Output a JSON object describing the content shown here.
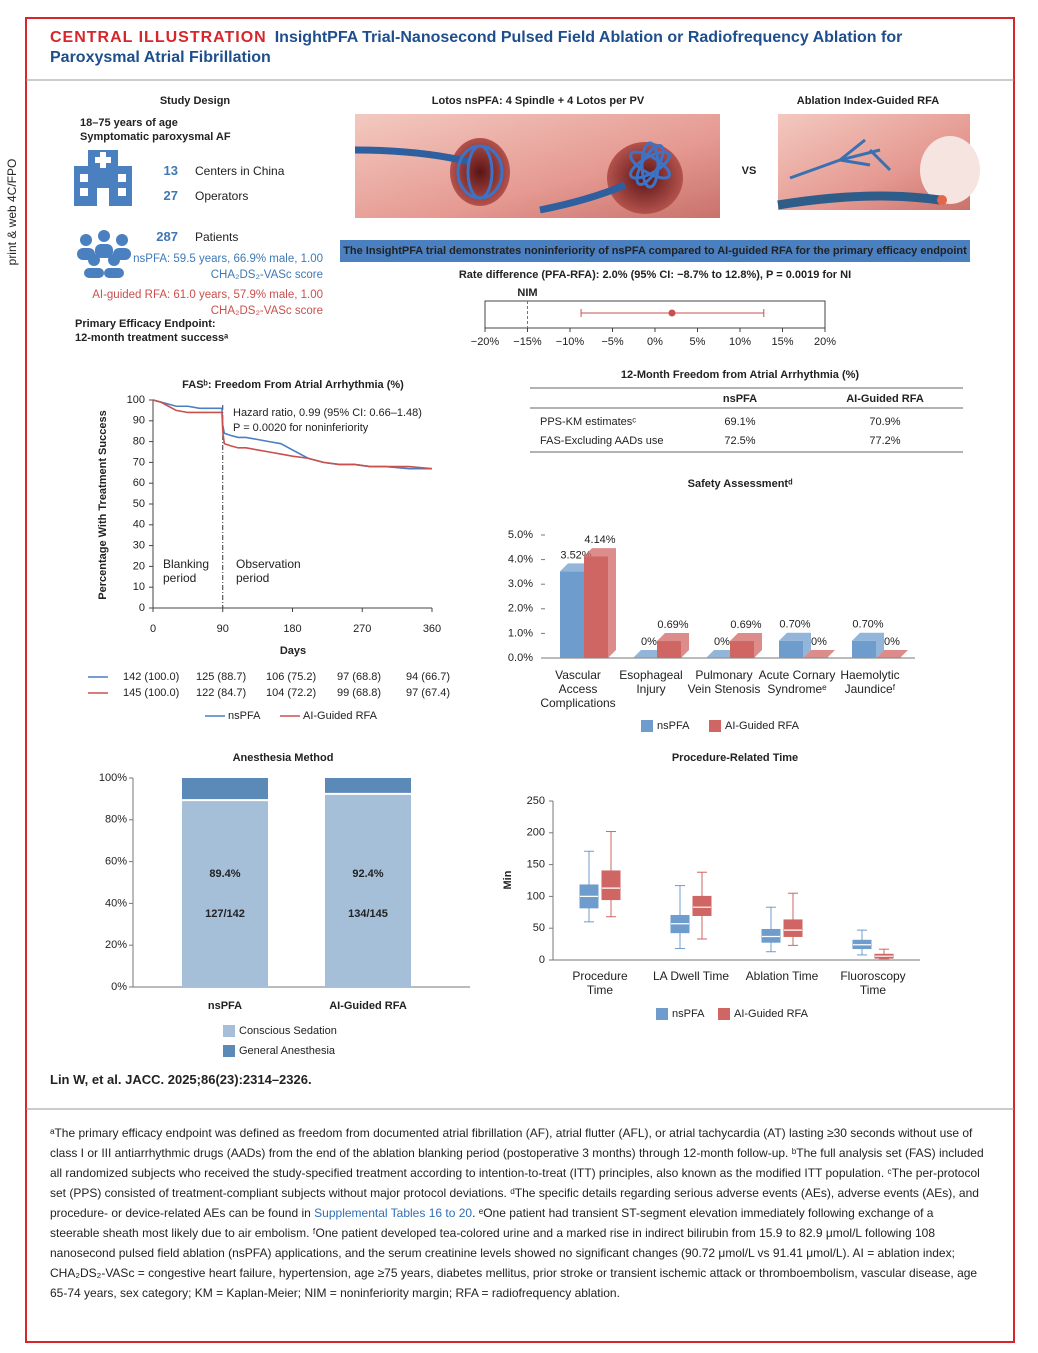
{
  "header": {
    "label": "CENTRAL ILLUSTRATION",
    "title": "InsightPFA Trial-Nanosecond Pulsed Field Ablation or Radiofrequency Ablation for Paroxysmal Atrial Fibrillation"
  },
  "side_label": "print & web 4C/FPO",
  "study_design": {
    "title": "Study Design",
    "criteria": [
      "18–75 years of age",
      "Symptomatic paroxysmal AF"
    ],
    "stats": [
      {
        "value": 13,
        "label": "Centers in China"
      },
      {
        "value": 27,
        "label": "Operators"
      },
      {
        "value": 287,
        "label": "Patients"
      }
    ],
    "nspfa": "nsPFA: 59.5 years, 66.9% male, 1.00 CHA₂DS₂-VASc score",
    "ai_rfa": "AI-guided RFA: 61.0 years, 57.9% male, 1.00 CHA₂DS₂-VASc score",
    "endpoint": [
      "Primary Efficacy Endpoint:",
      "12-month treatment successᵃ"
    ]
  },
  "panels": {
    "pfa_title": "Lotos nsPFA: 4 Spindle + 4 Lotos per PV",
    "vs": "VS",
    "rfa_title": "Ablation Index-Guided RFA"
  },
  "conclusion": "The InsightPFA trial demonstrates noninferiority of nsPFA compared to AI-guided RFA for the primary efficacy endpoint",
  "chart_data": [
    {
      "type": "forest",
      "title": "Rate difference (PFA-RFA): 2.0% (95% CI: −8.7% to 12.8%), P = 0.0019 for NI",
      "estimate": 2.0,
      "ci": [
        -8.7,
        12.8
      ],
      "color": "#c9504d",
      "nim": {
        "value": -15,
        "label": "NIM"
      },
      "xlim": [
        -20,
        20
      ],
      "xticks": [
        {
          "value": -20,
          "label": "−20%"
        },
        {
          "value": -15,
          "label": "−15%"
        },
        {
          "value": -10,
          "label": "−10%"
        },
        {
          "value": -5,
          "label": "−5%"
        },
        {
          "value": 0,
          "label": "0%"
        },
        {
          "value": 5,
          "label": "5%"
        },
        {
          "value": 10,
          "label": "10%"
        },
        {
          "value": 15,
          "label": "15%"
        },
        {
          "value": 20,
          "label": "20%"
        }
      ]
    },
    {
      "type": "line",
      "title": "FASᵇ: Freedom From Atrial Arrhythmia (%)",
      "x_label": "Days",
      "y_label": "Percentage With Treatment Success",
      "x": [
        0,
        10,
        20,
        30,
        45,
        60,
        75,
        89,
        90,
        92,
        100,
        110,
        120,
        135,
        150,
        165,
        180,
        200,
        220,
        240,
        260,
        280,
        300,
        330,
        360
      ],
      "series": [
        {
          "name": "nsPFA",
          "color": "#4a7fc0",
          "values": [
            100,
            99,
            98,
            97,
            97,
            96,
            96,
            96,
            88,
            84,
            83,
            82,
            82,
            81,
            80,
            79,
            76,
            72,
            70,
            69,
            69,
            68,
            68,
            67,
            67
          ]
        },
        {
          "name": "AI-Guided RFA",
          "color": "#c9504d",
          "values": [
            100,
            99,
            97,
            95,
            94,
            94,
            94,
            94,
            85,
            79,
            78,
            77,
            77,
            76,
            75,
            74,
            73,
            72,
            70,
            69,
            69,
            68,
            68,
            68,
            67
          ]
        }
      ],
      "xlim": [
        0,
        360
      ],
      "xticks": [
        0,
        90,
        180,
        270,
        360
      ],
      "ylim": [
        0,
        100
      ],
      "yticks": [
        0,
        10,
        20,
        30,
        40,
        50,
        60,
        70,
        80,
        90,
        100
      ],
      "vline": 90,
      "annotations": [
        "Hazard ratio, 0.99 (95% CI: 0.66–1.48)",
        "P = 0.0020 for noninferiority"
      ],
      "period_labels": [
        "Blanking period",
        "Observation period"
      ],
      "at_risk": [
        [
          "142 (100.0)",
          "125 (88.7)",
          "106 (75.2)",
          "97 (68.8)",
          "94 (66.7)"
        ],
        [
          "145 (100.0)",
          "122 (84.7)",
          "104 (72.2)",
          "99 (68.8)",
          "97 (67.4)"
        ]
      ]
    },
    {
      "type": "bar",
      "title": "Safety Assessmentᵈ",
      "categories": [
        "Vascular Access Complications",
        "Esophageal Injury",
        "Pulmonary Vein Stenosis",
        "Acute Cornary Syndromeᵉ",
        "Haemolytic Jaundiceᶠ"
      ],
      "series": [
        {
          "name": "nsPFA",
          "color": "#6e9ccc",
          "values": [
            3.52,
            0,
            0,
            0.7,
            0.7
          ],
          "value_labels": [
            "3.52%",
            "0%",
            "0%",
            "0.70%",
            "0.70%"
          ]
        },
        {
          "name": "AI-Guided RFA",
          "color": "#cf6664",
          "values": [
            4.14,
            0.69,
            0.69,
            0,
            0
          ],
          "value_labels": [
            "4.14%",
            "0.69%",
            "0.69%",
            "0%",
            "0%"
          ]
        }
      ],
      "ylim": [
        0,
        5
      ],
      "yticks": [
        {
          "value": 0,
          "label": "0.0%"
        },
        {
          "value": 1,
          "label": "1.0%"
        },
        {
          "value": 2,
          "label": "2.0%"
        },
        {
          "value": 3,
          "label": "3.0%"
        },
        {
          "value": 4,
          "label": "4.0%"
        },
        {
          "value": 5,
          "label": "5.0%"
        }
      ]
    },
    {
      "type": "stacked_bar",
      "title": "Anesthesia Method",
      "categories": [
        "nsPFA",
        "AI-Guided RFA"
      ],
      "category_colors": [
        "#3f78b5",
        "#c9504d"
      ],
      "series": [
        {
          "name": "Conscious Sedation",
          "color": "#a5bfd9",
          "values": [
            89.4,
            92.4
          ],
          "value_labels": [
            "89.4%",
            "92.4%"
          ]
        },
        {
          "name": "General Anesthesia",
          "color": "#5b8ab9",
          "values": [
            10.6,
            7.6
          ]
        }
      ],
      "annotations": [
        "127/142",
        "134/145"
      ],
      "ylim": [
        0,
        100
      ],
      "yticks": [
        {
          "value": 0,
          "label": "0%"
        },
        {
          "value": 20,
          "label": "20%"
        },
        {
          "value": 40,
          "label": "40%"
        },
        {
          "value": 60,
          "label": "60%"
        },
        {
          "value": 80,
          "label": "80%"
        },
        {
          "value": 100,
          "label": "100%"
        }
      ]
    },
    {
      "type": "box",
      "title": "Procedure-Related Time",
      "y_label": "Min",
      "categories": [
        "Procedure Time",
        "LA Dwell Time",
        "Ablation Time",
        "Fluoroscopy Time"
      ],
      "series": [
        {
          "name": "nsPFA",
          "color": "#6e9ccc",
          "values": [
            {
              "low": 60,
              "q1": 82,
              "median": 100,
              "q3": 118,
              "high": 171
            },
            {
              "low": 18,
              "q1": 43,
              "median": 57,
              "q3": 70,
              "high": 117
            },
            {
              "low": 13,
              "q1": 28,
              "median": 37,
              "q3": 48,
              "high": 83
            },
            {
              "low": 8,
              "q1": 18,
              "median": 24,
              "q3": 31,
              "high": 47
            }
          ]
        },
        {
          "name": "AI-Guided RFA",
          "color": "#cf6664",
          "values": [
            {
              "low": 68,
              "q1": 95,
              "median": 113,
              "q3": 140,
              "high": 202
            },
            {
              "low": 33,
              "q1": 70,
              "median": 83,
              "q3": 100,
              "high": 138
            },
            {
              "low": 23,
              "q1": 37,
              "median": 47,
              "q3": 63,
              "high": 105
            },
            {
              "low": 2,
              "q1": 3,
              "median": 6,
              "q3": 9,
              "high": 17
            }
          ]
        }
      ],
      "ylim": [
        0,
        250
      ],
      "yticks": [
        0,
        50,
        100,
        150,
        200,
        250
      ]
    }
  ],
  "table": {
    "title": "12-Month Freedom from Atrial Arrhythmia (%)",
    "columns": [
      "nsPFA",
      "AI-Guided RFA"
    ],
    "rows": [
      {
        "label": "PPS-KM estimatesᶜ",
        "values": [
          "69.1%",
          "70.9%"
        ]
      },
      {
        "label": "FAS-Excluding AADs use",
        "values": [
          "72.5%",
          "77.2%"
        ]
      }
    ]
  },
  "citation": "Lin W, et al. JACC. 2025;86(23):2314–2326.",
  "footnote": [
    "ᵃThe primary efficacy endpoint was defined as freedom from documented atrial fibrillation (AF), atrial flutter (AFL), or atrial tachycardia (AT) lasting ≥30 seconds without use of class I or III antiarrhythmic drugs (AADs) from the end of the ablation blanking period (postoperative 3 months) through 12-month follow-up. ᵇThe full analysis set (FAS) included all randomized subjects who received the study-specified treatment according to intention-to-treat (ITT) principles, also known as the modified ITT population. ᶜThe per-protocol set (PPS) consisted of treatment-compliant subjects without major protocol deviations. ᵈThe specific details regarding serious adverse events (AEs), adverse events (AEs), and procedure- or device-related AEs can be found in ",
    "Supplemental Tables 16 to 20",
    ". ᵉOne patient had transient ST-segment elevation immediately following exchange of a steerable sheath most likely due to air embolism. ᶠOne patient developed tea-colored urine and a marked rise in indirect bilirubin from 15.9 to 82.9 μmol/L following 108 nanosecond pulsed field ablation (nsPFA) applications, and the serum creatinine levels showed no significant changes (90.72 μmol/L vs 91.41 μmol/L). AI = ablation index; CHA₂DS₂-VASc = congestive heart failure, hypertension, age ≥75 years, diabetes mellitus, prior stroke or transient ischemic attack or thromboembolism, vascular disease, age 65-74 years, sex category; KM = Kaplan-Meier; NIM = noninferiority margin; RFA = radiofrequency ablation."
  ]
}
